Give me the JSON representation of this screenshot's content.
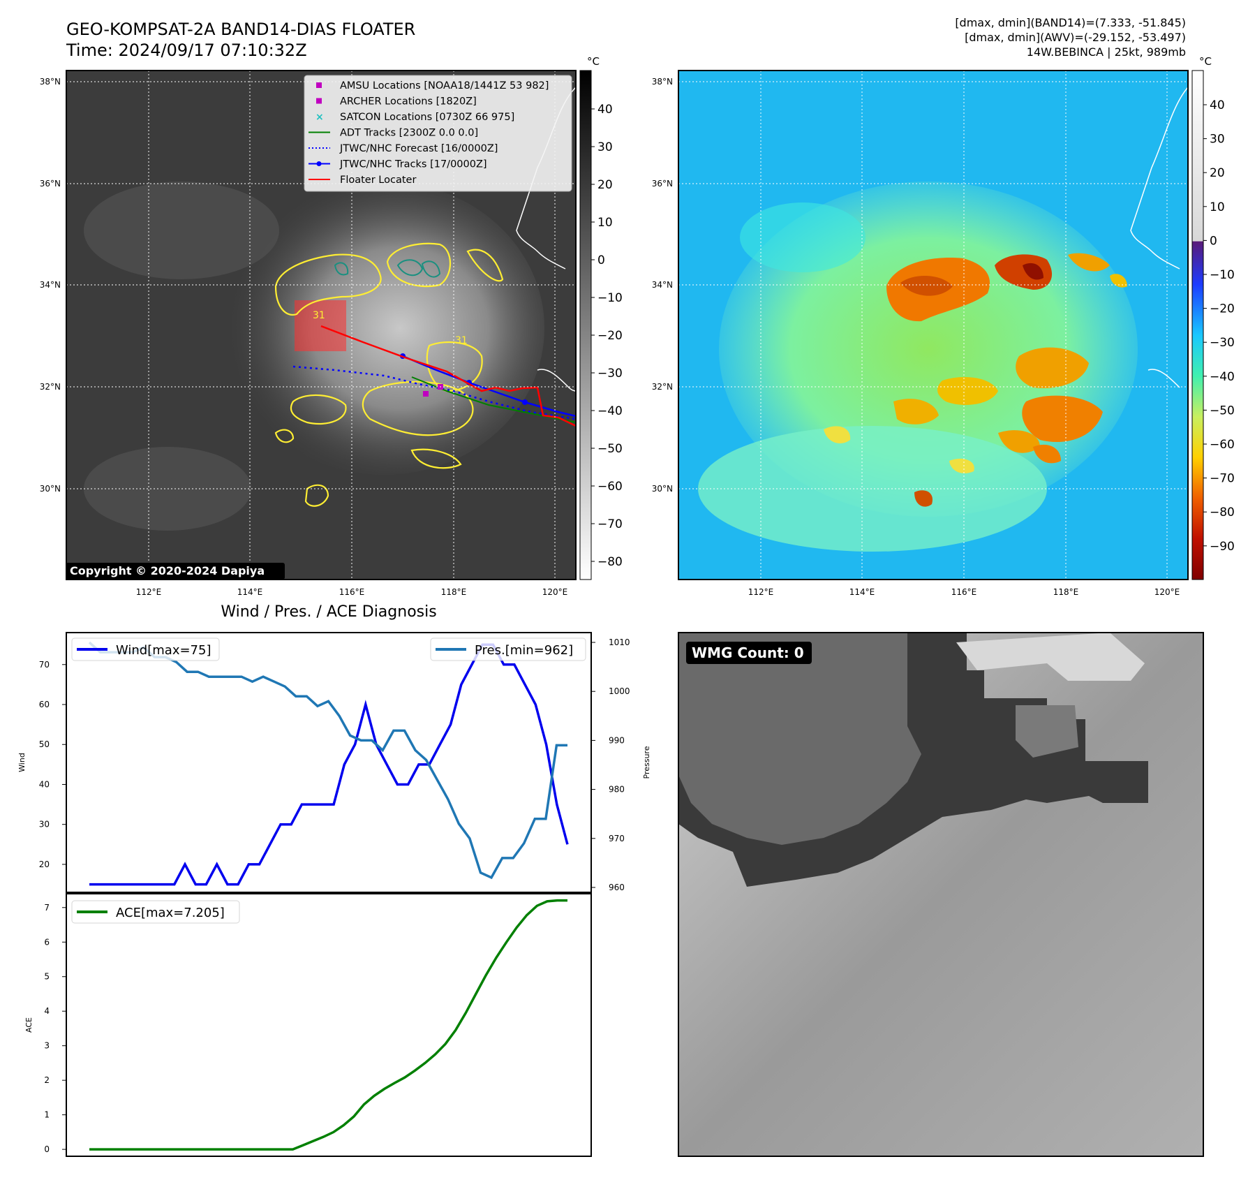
{
  "header": {
    "title_line1": "GEO-KOMPSAT-2A BAND14-DIAS FLOATER",
    "title_line2": "Time: 2024/09/17 07:10:32Z",
    "info_line1": "[dmax, dmin](BAND14)=(7.333, -51.845)",
    "info_line2": "[dmax, dmin](AWV)=(-29.152, -53.497)",
    "info_line3": "14W.BEBINCA | 25kt, 989mb"
  },
  "map": {
    "lat_labels": [
      "38°N",
      "36°N",
      "34°N",
      "32°N",
      "30°N"
    ],
    "lon_labels": [
      "112°E",
      "114°E",
      "116°E",
      "118°E",
      "120°E"
    ],
    "copyright": "Copyright © 2020-2024 Dapiya",
    "contour_label": "31",
    "legend": [
      {
        "label": "AMSU Locations [NOAA18/1441Z 53 982]",
        "marker": "square",
        "color": "#c000c0"
      },
      {
        "label": "ARCHER Locations [1820Z]",
        "marker": "square",
        "color": "#c000c0"
      },
      {
        "label": "SATCON Locations [0730Z 66 975]",
        "marker": "x",
        "color": "#20c0c0"
      },
      {
        "label": "ADT Tracks [2300Z 0.0 0.0]",
        "marker": "line",
        "color": "#008000"
      },
      {
        "label": "JTWC/NHC Forecast [16/0000Z]",
        "marker": "dotted",
        "color": "#0000ff"
      },
      {
        "label": "JTWC/NHC Tracks [17/0000Z]",
        "marker": "line-dot",
        "color": "#0000ff"
      },
      {
        "label": "Floater Locater",
        "marker": "line",
        "color": "#ff0000"
      }
    ]
  },
  "colorbar_gray": {
    "unit": "°C",
    "ticks": [
      "40",
      "30",
      "20",
      "10",
      "0",
      "−10",
      "−20",
      "−30",
      "−40",
      "−50",
      "−60",
      "−70",
      "−80"
    ]
  },
  "colorbar_jet": {
    "unit": "°C",
    "ticks": [
      "40",
      "30",
      "20",
      "10",
      "0",
      "−10",
      "−20",
      "−30",
      "−40",
      "−50",
      "−60",
      "−70",
      "−80",
      "−90"
    ]
  },
  "wmg": {
    "label": "WMG Count: 0"
  },
  "colors": {
    "wind": "#0000ee",
    "pressure": "#1f77b4",
    "ace": "#008000",
    "contour_yellow": "#ffee33",
    "contour_teal": "#1a9080",
    "floater": "#ff0000"
  },
  "chart_data": [
    {
      "type": "line",
      "title": "Wind / Pres. / ACE Diagnosis",
      "ylabel": "Wind",
      "ylim": [
        13,
        78
      ],
      "yticks": [
        "70",
        "60",
        "50",
        "40",
        "30",
        "20"
      ],
      "legend": "top-left",
      "series": [
        {
          "name": "Wind[max=75]",
          "values": [
            15,
            15,
            15,
            15,
            15,
            15,
            15,
            15,
            15,
            20,
            15,
            15,
            20,
            15,
            15,
            20,
            20,
            25,
            30,
            30,
            35,
            35,
            35,
            35,
            45,
            50,
            60,
            50,
            45,
            40,
            40,
            45,
            45,
            50,
            55,
            65,
            70,
            75,
            75,
            70,
            70,
            65,
            60,
            50,
            35,
            25
          ]
        }
      ]
    },
    {
      "type": "line",
      "ylabel": "Pressure",
      "ylim": [
        959,
        1012
      ],
      "yticks": [
        "1010",
        "1000",
        "990",
        "980",
        "970",
        "960"
      ],
      "legend": "top-right",
      "series": [
        {
          "name": "Pres.[min=962]",
          "values": [
            1010,
            1008,
            1008,
            1008,
            1008,
            1009,
            1007,
            1007,
            1006,
            1004,
            1004,
            1003,
            1003,
            1003,
            1003,
            1002,
            1003,
            1002,
            1001,
            999,
            999,
            997,
            998,
            995,
            991,
            990,
            990,
            988,
            992,
            992,
            988,
            986,
            982,
            978,
            973,
            970,
            963,
            962,
            966,
            966,
            969,
            974,
            974,
            989,
            989
          ]
        }
      ]
    },
    {
      "type": "line",
      "ylabel": "ACE",
      "ylim": [
        -0.2,
        7.4
      ],
      "yticks": [
        "7",
        "6",
        "5",
        "4",
        "3",
        "2",
        "1",
        "0"
      ],
      "legend": "top-left",
      "series": [
        {
          "name": "ACE[max=7.205]",
          "values": [
            0,
            0,
            0,
            0,
            0,
            0,
            0,
            0,
            0,
            0,
            0,
            0,
            0,
            0,
            0,
            0,
            0,
            0,
            0,
            0,
            0,
            0.12,
            0.24,
            0.36,
            0.5,
            0.7,
            0.95,
            1.3,
            1.55,
            1.75,
            1.92,
            2.08,
            2.28,
            2.5,
            2.75,
            3.05,
            3.45,
            3.95,
            4.5,
            5.05,
            5.55,
            6.0,
            6.42,
            6.78,
            7.05,
            7.18,
            7.205,
            7.205
          ]
        }
      ]
    }
  ]
}
